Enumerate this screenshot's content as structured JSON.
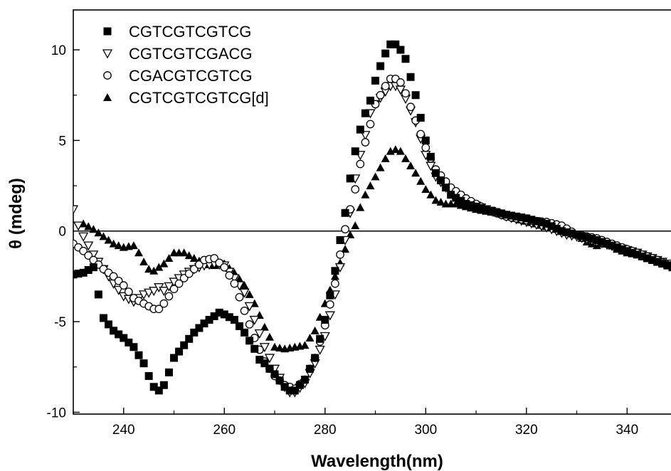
{
  "chart_data": {
    "type": "scatter",
    "xlabel": "Wavelength(nm)",
    "ylabel": "θ (mdeg)",
    "xlim": [
      230,
      349
    ],
    "ylim": [
      -10.1,
      12.2
    ],
    "x_ticks": [
      240,
      260,
      280,
      300,
      320,
      340
    ],
    "y_ticks": [
      -10,
      -5,
      0,
      5,
      10
    ],
    "y_tick_labels": [
      "-10",
      "-5",
      "0",
      "5",
      "10"
    ],
    "zero_line": true,
    "grid": false,
    "legend_position": "top-left",
    "series": [
      {
        "name": "CGTCGTCGTCG",
        "marker": "filled-square",
        "color": "#000000",
        "anchors": [
          [
            230,
            -2.4
          ],
          [
            232,
            -2.3
          ],
          [
            234,
            -2.0
          ],
          [
            235,
            -3.5
          ],
          [
            236,
            -4.8
          ],
          [
            238,
            -5.5
          ],
          [
            240,
            -5.9
          ],
          [
            242,
            -6.4
          ],
          [
            244,
            -7.3
          ],
          [
            245,
            -8.0
          ],
          [
            246,
            -8.6
          ],
          [
            247,
            -8.8
          ],
          [
            248,
            -8.5
          ],
          [
            249,
            -7.8
          ],
          [
            250,
            -7.0
          ],
          [
            252,
            -6.3
          ],
          [
            254,
            -5.6
          ],
          [
            256,
            -5.1
          ],
          [
            258,
            -4.7
          ],
          [
            259,
            -4.5
          ],
          [
            260,
            -4.6
          ],
          [
            262,
            -4.9
          ],
          [
            264,
            -5.6
          ],
          [
            266,
            -6.5
          ],
          [
            267,
            -7.1
          ],
          [
            268,
            -7.3
          ],
          [
            270,
            -7.9
          ],
          [
            272,
            -8.6
          ],
          [
            273,
            -8.8
          ],
          [
            274,
            -8.8
          ],
          [
            276,
            -8.2
          ],
          [
            278,
            -7.0
          ],
          [
            280,
            -4.9
          ],
          [
            282,
            -2.2
          ],
          [
            283,
            -0.5
          ],
          [
            284,
            1.0
          ],
          [
            285,
            2.9
          ],
          [
            286,
            4.4
          ],
          [
            287,
            5.6
          ],
          [
            288,
            6.5
          ],
          [
            289,
            7.2
          ],
          [
            290,
            8.3
          ],
          [
            291,
            9.1
          ],
          [
            292,
            9.8
          ],
          [
            293,
            10.3
          ],
          [
            294,
            10.3
          ],
          [
            295,
            10.0
          ],
          [
            296,
            9.5
          ],
          [
            298,
            7.5
          ],
          [
            300,
            5.0
          ],
          [
            302,
            3.2
          ],
          [
            305,
            2.0
          ],
          [
            308,
            1.5
          ],
          [
            312,
            1.2
          ],
          [
            316,
            0.9
          ],
          [
            320,
            0.7
          ],
          [
            324,
            0.4
          ],
          [
            327,
            0.0
          ],
          [
            330,
            -0.2
          ],
          [
            334,
            -0.5
          ],
          [
            338,
            -0.9
          ],
          [
            342,
            -1.3
          ],
          [
            346,
            -1.7
          ],
          [
            349,
            -2.0
          ]
        ]
      },
      {
        "name": "CGTCGTCGACG",
        "marker": "open-triangle-down",
        "color": "#000000",
        "anchors": [
          [
            230,
            1.2
          ],
          [
            231,
            0.3
          ],
          [
            232,
            -0.3
          ],
          [
            233,
            -0.8
          ],
          [
            234,
            -1.3
          ],
          [
            236,
            -2.1
          ],
          [
            238,
            -2.9
          ],
          [
            240,
            -3.6
          ],
          [
            242,
            -3.9
          ],
          [
            244,
            -3.5
          ],
          [
            246,
            -3.3
          ],
          [
            247,
            -3.1
          ],
          [
            248,
            -3.3
          ],
          [
            250,
            -2.8
          ],
          [
            252,
            -2.4
          ],
          [
            254,
            -2.1
          ],
          [
            256,
            -1.9
          ],
          [
            258,
            -1.8
          ],
          [
            260,
            -1.9
          ],
          [
            262,
            -2.6
          ],
          [
            264,
            -3.4
          ],
          [
            266,
            -4.9
          ],
          [
            268,
            -6.4
          ],
          [
            270,
            -7.6
          ],
          [
            272,
            -8.6
          ],
          [
            273,
            -8.9
          ],
          [
            274,
            -8.9
          ],
          [
            276,
            -8.4
          ],
          [
            278,
            -7.3
          ],
          [
            280,
            -5.8
          ],
          [
            282,
            -3.5
          ],
          [
            284,
            -0.5
          ],
          [
            285,
            1.0
          ],
          [
            286,
            2.9
          ],
          [
            287,
            4.2
          ],
          [
            288,
            5.3
          ],
          [
            289,
            6.5
          ],
          [
            290,
            7.0
          ],
          [
            292,
            7.7
          ],
          [
            293,
            8.0
          ],
          [
            294,
            8.0
          ],
          [
            295,
            7.8
          ],
          [
            296,
            7.3
          ],
          [
            298,
            6.0
          ],
          [
            300,
            4.2
          ],
          [
            302,
            3.0
          ],
          [
            305,
            2.1
          ],
          [
            308,
            1.6
          ],
          [
            312,
            1.2
          ],
          [
            316,
            0.8
          ],
          [
            320,
            0.5
          ],
          [
            324,
            0.2
          ],
          [
            328,
            -0.2
          ],
          [
            330,
            -0.3
          ],
          [
            334,
            -0.6
          ],
          [
            338,
            -0.9
          ],
          [
            342,
            -1.2
          ],
          [
            346,
            -1.6
          ],
          [
            349,
            -1.9
          ]
        ]
      },
      {
        "name": "CGACGTCGTCG",
        "marker": "open-circle",
        "color": "#000000",
        "anchors": [
          [
            230,
            -0.7
          ],
          [
            232,
            -1.1
          ],
          [
            234,
            -1.6
          ],
          [
            236,
            -2.1
          ],
          [
            238,
            -2.5
          ],
          [
            240,
            -3.0
          ],
          [
            242,
            -3.7
          ],
          [
            244,
            -4.0
          ],
          [
            246,
            -4.3
          ],
          [
            247,
            -4.3
          ],
          [
            248,
            -4.0
          ],
          [
            250,
            -3.2
          ],
          [
            252,
            -2.6
          ],
          [
            254,
            -2.1
          ],
          [
            256,
            -1.6
          ],
          [
            258,
            -1.5
          ],
          [
            260,
            -2.0
          ],
          [
            262,
            -2.9
          ],
          [
            264,
            -4.4
          ],
          [
            266,
            -5.9
          ],
          [
            268,
            -7.2
          ],
          [
            270,
            -8.0
          ],
          [
            272,
            -8.5
          ],
          [
            273,
            -8.6
          ],
          [
            274,
            -8.7
          ],
          [
            276,
            -8.2
          ],
          [
            278,
            -7.0
          ],
          [
            280,
            -5.2
          ],
          [
            282,
            -2.9
          ],
          [
            283,
            -1.3
          ],
          [
            284,
            0.1
          ],
          [
            285,
            1.2
          ],
          [
            286,
            2.3
          ],
          [
            287,
            3.7
          ],
          [
            288,
            4.9
          ],
          [
            289,
            5.9
          ],
          [
            290,
            7.0
          ],
          [
            292,
            8.0
          ],
          [
            293,
            8.4
          ],
          [
            294,
            8.4
          ],
          [
            295,
            8.2
          ],
          [
            296,
            7.6
          ],
          [
            298,
            6.1
          ],
          [
            300,
            4.6
          ],
          [
            302,
            3.4
          ],
          [
            305,
            2.4
          ],
          [
            308,
            1.8
          ],
          [
            312,
            1.2
          ],
          [
            316,
            0.8
          ],
          [
            320,
            0.6
          ],
          [
            324,
            0.5
          ],
          [
            327,
            0.3
          ],
          [
            330,
            -0.2
          ],
          [
            334,
            -0.4
          ],
          [
            338,
            -0.8
          ],
          [
            342,
            -1.2
          ],
          [
            346,
            -1.6
          ],
          [
            349,
            -2.0
          ]
        ]
      },
      {
        "name": "CGTCGTCGTCG[d]",
        "marker": "filled-triangle-up",
        "color": "#000000",
        "anchors": [
          [
            232,
            0.4
          ],
          [
            234,
            0.1
          ],
          [
            236,
            -0.3
          ],
          [
            238,
            -0.7
          ],
          [
            240,
            -0.9
          ],
          [
            242,
            -0.8
          ],
          [
            243,
            -1.2
          ],
          [
            244,
            -1.7
          ],
          [
            245,
            -2.1
          ],
          [
            246,
            -2.2
          ],
          [
            248,
            -1.8
          ],
          [
            250,
            -1.2
          ],
          [
            252,
            -1.2
          ],
          [
            254,
            -1.5
          ],
          [
            256,
            -1.8
          ],
          [
            258,
            -1.9
          ],
          [
            260,
            -1.8
          ],
          [
            262,
            -2.3
          ],
          [
            264,
            -3.0
          ],
          [
            266,
            -4.0
          ],
          [
            268,
            -5.3
          ],
          [
            270,
            -6.4
          ],
          [
            272,
            -6.5
          ],
          [
            274,
            -6.4
          ],
          [
            276,
            -6.3
          ],
          [
            278,
            -5.5
          ],
          [
            280,
            -4.0
          ],
          [
            282,
            -2.5
          ],
          [
            284,
            -1.0
          ],
          [
            285,
            -0.2
          ],
          [
            286,
            0.3
          ],
          [
            287,
            1.3
          ],
          [
            288,
            2.0
          ],
          [
            290,
            3.0
          ],
          [
            292,
            4.0
          ],
          [
            293,
            4.4
          ],
          [
            294,
            4.5
          ],
          [
            295,
            4.4
          ],
          [
            296,
            4.0
          ],
          [
            298,
            3.2
          ],
          [
            300,
            2.3
          ],
          [
            302,
            1.7
          ],
          [
            304,
            1.5
          ],
          [
            306,
            1.5
          ],
          [
            310,
            1.2
          ],
          [
            314,
            1.0
          ],
          [
            318,
            0.7
          ],
          [
            322,
            0.4
          ],
          [
            326,
            0.1
          ],
          [
            330,
            -0.2
          ],
          [
            332,
            -0.6
          ],
          [
            334,
            -0.8
          ],
          [
            336,
            -0.6
          ],
          [
            338,
            -1.0
          ],
          [
            340,
            -1.2
          ],
          [
            342,
            -1.3
          ],
          [
            344,
            -1.5
          ],
          [
            346,
            -1.7
          ],
          [
            349,
            -1.9
          ]
        ]
      }
    ]
  }
}
